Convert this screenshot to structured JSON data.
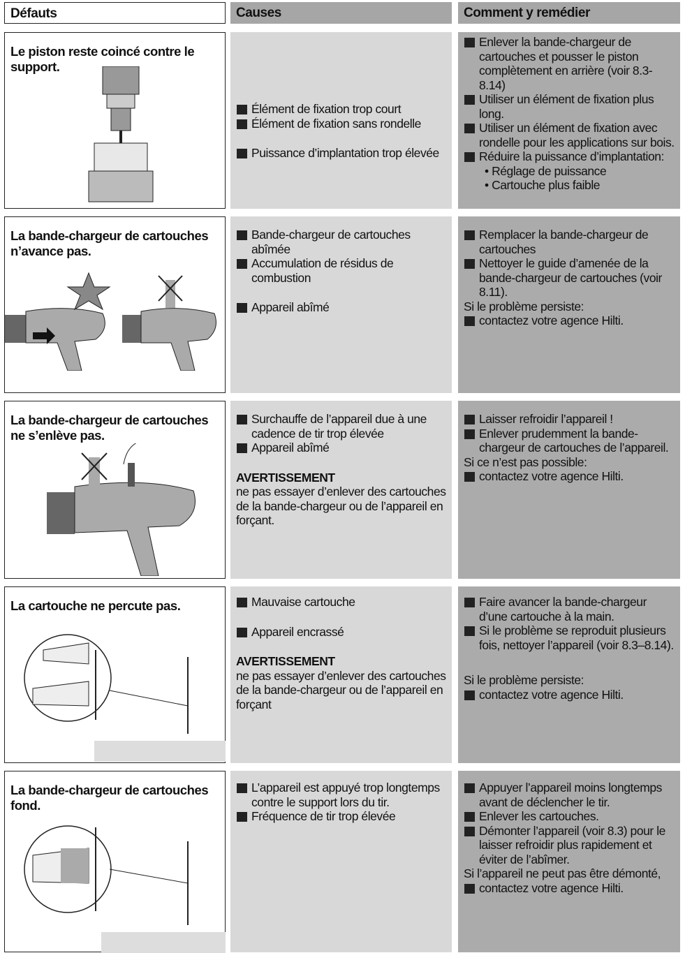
{
  "header": {
    "defects": "Défauts",
    "causes": "Causes",
    "remedies": "Comment y remédier"
  },
  "rows": [
    {
      "defect": "Le piston reste coincé contre le support.",
      "causes": [
        "Élément de fixation trop court",
        "Élément de fixation sans rondelle",
        "Puissance d’implantation trop élevée"
      ],
      "remedies": [
        "Enlever la bande-chargeur de cartouches et pousser le piston complètement en arrière (voir 8.3-8.14)",
        "Utiliser un élément de fixation plus long.",
        "Utiliser un élément de fixation avec rondelle pour les applications sur bois.",
        "Réduire la puissance d’implantation:",
        "• Réglage de puissance",
        "• Cartouche plus faible"
      ]
    },
    {
      "defect": "La bande-chargeur de cartouches n’avance pas.",
      "causes": [
        "Bande-chargeur de cartouches abîmée",
        "Accumulation de résidus de combustion",
        "Appareil abîmé"
      ],
      "remedies": [
        "Remplacer la bande-chargeur de cartouches",
        "Nettoyer le guide d’amenée de la bande-chargeur de cartouches (voir 8.11).",
        "Si le problème persiste:",
        "contactez votre agence Hilti."
      ]
    },
    {
      "defect": "La bande-chargeur de cartouches ne s’enlève pas.",
      "causes": [
        "Surchauffe de l’appareil due à une cadence de tir trop élevée",
        "Appareil abîmé",
        "AVERTISSEMENT",
        "ne pas essayer d’enlever des cartouches de la bande-chargeur ou de l’appareil en forçant."
      ],
      "remedies": [
        "Laisser refroidir l’appareil !",
        "Enlever prudemment la bande-chargeur de cartouches de l’appareil.",
        "Si ce n’est pas possible:",
        "contactez votre agence Hilti."
      ]
    },
    {
      "defect": "La cartouche ne percute pas.",
      "causes": [
        "Mauvaise cartouche",
        "Appareil encrassé",
        "AVERTISSEMENT",
        "ne pas essayer d’enlever des cartouches de la bande-chargeur ou de l’appareil en forçant"
      ],
      "remedies": [
        "Faire avancer la bande-chargeur d’une cartouche à la main.",
        "Si le problème se reproduit plusieurs fois, nettoyer l’appareil (voir 8.3–8.14).",
        "Si le problème persiste:",
        "contactez votre agence Hilti."
      ]
    },
    {
      "defect": "La bande-chargeur de cartouches fond.",
      "causes": [
        "L’appareil est appuyé trop longtemps contre le support lors du tir.",
        "Fréquence de tir trop élevée"
      ],
      "remedies": [
        "Appuyer l’appareil moins longtemps avant de déclencher le tir.",
        "Enlever les cartouches.",
        "Démonter l’appareil (voir 8.3) pour le laisser refroidir plus rapidement et éviter de l’abîmer.",
        "Si l’appareil ne peut pas être démonté,",
        "contactez votre agence Hilti."
      ]
    }
  ]
}
